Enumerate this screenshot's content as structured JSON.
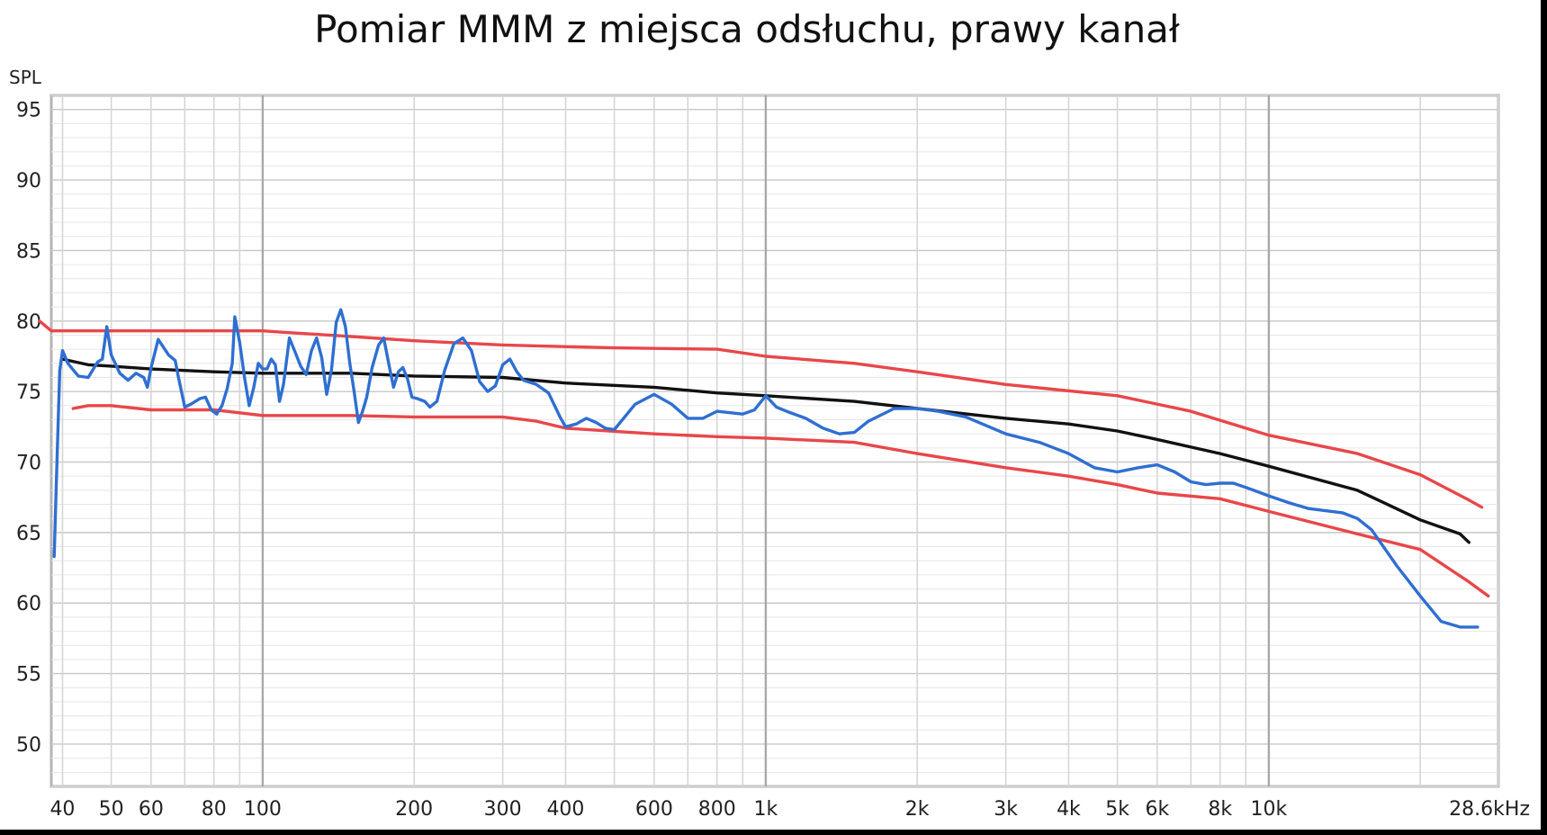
{
  "chart_data": {
    "type": "line",
    "title": "Pomiar MMM z miejsca odsłuchu, prawy kanał",
    "ylabel": "SPL",
    "xlabel": "",
    "x_scale": "log",
    "xlim": [
      38,
      28600
    ],
    "ylim": [
      47,
      96
    ],
    "grid": true,
    "legend": "none",
    "y_ticks": [
      50,
      55,
      60,
      65,
      70,
      75,
      80,
      85,
      90,
      95
    ],
    "x_ticks": [
      {
        "value": 40,
        "label": "40"
      },
      {
        "value": 50,
        "label": "50"
      },
      {
        "value": 60,
        "label": "60"
      },
      {
        "value": 80,
        "label": "80"
      },
      {
        "value": 100,
        "label": "100"
      },
      {
        "value": 200,
        "label": "200"
      },
      {
        "value": 300,
        "label": "300"
      },
      {
        "value": 400,
        "label": "400"
      },
      {
        "value": 600,
        "label": "600"
      },
      {
        "value": 800,
        "label": "800"
      },
      {
        "value": 1000,
        "label": "1k"
      },
      {
        "value": 2000,
        "label": "2k"
      },
      {
        "value": 3000,
        "label": "3k"
      },
      {
        "value": 4000,
        "label": "4k"
      },
      {
        "value": 5000,
        "label": "5k"
      },
      {
        "value": 6000,
        "label": "6k"
      },
      {
        "value": 8000,
        "label": "8k"
      },
      {
        "value": 10000,
        "label": "10k"
      },
      {
        "value": 28600,
        "label": "28.6kHz"
      }
    ],
    "series": [
      {
        "color": "#e8474a",
        "points": [
          [
            36,
            80
          ],
          [
            38,
            79.3
          ],
          [
            60,
            79.3
          ],
          [
            100,
            79.3
          ],
          [
            110,
            79.2
          ],
          [
            150,
            78.9
          ],
          [
            200,
            78.6
          ],
          [
            300,
            78.3
          ],
          [
            500,
            78.1
          ],
          [
            800,
            78
          ],
          [
            1000,
            77.5
          ],
          [
            1500,
            77
          ],
          [
            2000,
            76.4
          ],
          [
            3000,
            75.5
          ],
          [
            5000,
            74.7
          ],
          [
            7000,
            73.6
          ],
          [
            10000,
            71.9
          ],
          [
            15000,
            70.6
          ],
          [
            20000,
            69.1
          ],
          [
            25000,
            67.3
          ],
          [
            26500,
            66.8
          ]
        ]
      },
      {
        "color": "#e8474a",
        "points": [
          [
            42,
            73.8
          ],
          [
            45,
            74
          ],
          [
            50,
            74
          ],
          [
            60,
            73.7
          ],
          [
            80,
            73.7
          ],
          [
            100,
            73.3
          ],
          [
            150,
            73.3
          ],
          [
            200,
            73.2
          ],
          [
            300,
            73.2
          ],
          [
            350,
            72.9
          ],
          [
            400,
            72.4
          ],
          [
            600,
            72
          ],
          [
            800,
            71.8
          ],
          [
            1000,
            71.7
          ],
          [
            1500,
            71.4
          ],
          [
            2000,
            70.6
          ],
          [
            3000,
            69.6
          ],
          [
            4000,
            69
          ],
          [
            5000,
            68.4
          ],
          [
            6000,
            67.8
          ],
          [
            8000,
            67.4
          ],
          [
            10000,
            66.5
          ],
          [
            15000,
            64.9
          ],
          [
            20000,
            63.8
          ],
          [
            25000,
            61.5
          ],
          [
            27300,
            60.5
          ]
        ]
      },
      {
        "color": "#111111",
        "points": [
          [
            40,
            77.3
          ],
          [
            45,
            76.9
          ],
          [
            50,
            76.8
          ],
          [
            60,
            76.6
          ],
          [
            80,
            76.4
          ],
          [
            100,
            76.3
          ],
          [
            150,
            76.3
          ],
          [
            200,
            76.1
          ],
          [
            300,
            76
          ],
          [
            400,
            75.6
          ],
          [
            600,
            75.3
          ],
          [
            800,
            74.9
          ],
          [
            1000,
            74.7
          ],
          [
            1500,
            74.3
          ],
          [
            2000,
            73.8
          ],
          [
            3000,
            73.1
          ],
          [
            4000,
            72.7
          ],
          [
            5000,
            72.2
          ],
          [
            6000,
            71.6
          ],
          [
            8000,
            70.6
          ],
          [
            10000,
            69.7
          ],
          [
            15000,
            68
          ],
          [
            20000,
            65.9
          ],
          [
            24000,
            64.9
          ],
          [
            25000,
            64.3
          ]
        ]
      },
      {
        "color": "#2f6fd1",
        "points": [
          [
            38.5,
            63.3
          ],
          [
            39,
            70
          ],
          [
            39.5,
            76.5
          ],
          [
            40,
            77.9
          ],
          [
            41,
            77
          ],
          [
            43,
            76.1
          ],
          [
            45,
            76
          ],
          [
            47,
            77.1
          ],
          [
            48,
            77.3
          ],
          [
            49,
            79.6
          ],
          [
            50,
            77.6
          ],
          [
            52,
            76.3
          ],
          [
            54,
            75.8
          ],
          [
            56,
            76.3
          ],
          [
            58,
            76
          ],
          [
            59,
            75.3
          ],
          [
            60,
            76.7
          ],
          [
            62,
            78.7
          ],
          [
            65,
            77.6
          ],
          [
            67,
            77.2
          ],
          [
            68,
            76
          ],
          [
            70,
            73.9
          ],
          [
            72,
            74.1
          ],
          [
            75,
            74.5
          ],
          [
            77,
            74.6
          ],
          [
            79,
            73.7
          ],
          [
            81,
            73.4
          ],
          [
            83,
            74
          ],
          [
            85,
            75.2
          ],
          [
            87,
            77
          ],
          [
            88,
            80.3
          ],
          [
            90,
            78.5
          ],
          [
            92,
            76
          ],
          [
            94,
            74
          ],
          [
            96,
            75.3
          ],
          [
            98,
            77
          ],
          [
            100,
            76.6
          ],
          [
            102,
            76.6
          ],
          [
            104,
            77.3
          ],
          [
            106,
            76.9
          ],
          [
            108,
            74.3
          ],
          [
            110,
            75.5
          ],
          [
            113,
            78.8
          ],
          [
            116,
            77.8
          ],
          [
            119,
            76.8
          ],
          [
            122,
            76.2
          ],
          [
            125,
            77.9
          ],
          [
            128,
            78.8
          ],
          [
            131,
            77.4
          ],
          [
            134,
            74.8
          ],
          [
            137,
            76.5
          ],
          [
            140,
            79.9
          ],
          [
            143,
            80.8
          ],
          [
            146,
            79.6
          ],
          [
            149,
            77
          ],
          [
            152,
            75
          ],
          [
            155,
            72.8
          ],
          [
            158,
            73.6
          ],
          [
            161,
            74.6
          ],
          [
            165,
            76.7
          ],
          [
            170,
            78.3
          ],
          [
            174,
            78.8
          ],
          [
            178,
            77
          ],
          [
            182,
            75.3
          ],
          [
            186,
            76.4
          ],
          [
            190,
            76.7
          ],
          [
            194,
            75.9
          ],
          [
            198,
            74.6
          ],
          [
            203,
            74.5
          ],
          [
            210,
            74.3
          ],
          [
            215,
            73.9
          ],
          [
            222,
            74.3
          ],
          [
            230,
            76.5
          ],
          [
            240,
            78.4
          ],
          [
            250,
            78.8
          ],
          [
            260,
            77.9
          ],
          [
            270,
            75.7
          ],
          [
            280,
            75
          ],
          [
            290,
            75.4
          ],
          [
            300,
            76.9
          ],
          [
            310,
            77.3
          ],
          [
            320,
            76.4
          ],
          [
            330,
            75.8
          ],
          [
            350,
            75.5
          ],
          [
            370,
            74.9
          ],
          [
            390,
            73.2
          ],
          [
            400,
            72.5
          ],
          [
            420,
            72.7
          ],
          [
            440,
            73.1
          ],
          [
            460,
            72.8
          ],
          [
            480,
            72.4
          ],
          [
            500,
            72.3
          ],
          [
            550,
            74.1
          ],
          [
            600,
            74.8
          ],
          [
            650,
            74.1
          ],
          [
            700,
            73.1
          ],
          [
            750,
            73.1
          ],
          [
            800,
            73.6
          ],
          [
            850,
            73.5
          ],
          [
            900,
            73.4
          ],
          [
            950,
            73.7
          ],
          [
            1000,
            74.7
          ],
          [
            1050,
            73.9
          ],
          [
            1100,
            73.6
          ],
          [
            1200,
            73.1
          ],
          [
            1300,
            72.4
          ],
          [
            1400,
            72
          ],
          [
            1500,
            72.1
          ],
          [
            1600,
            72.9
          ],
          [
            1800,
            73.8
          ],
          [
            2000,
            73.8
          ],
          [
            2200,
            73.6
          ],
          [
            2500,
            73.2
          ],
          [
            3000,
            72
          ],
          [
            3500,
            71.4
          ],
          [
            4000,
            70.6
          ],
          [
            4500,
            69.6
          ],
          [
            5000,
            69.3
          ],
          [
            5500,
            69.6
          ],
          [
            6000,
            69.8
          ],
          [
            6500,
            69.3
          ],
          [
            7000,
            68.6
          ],
          [
            7500,
            68.4
          ],
          [
            8000,
            68.5
          ],
          [
            8500,
            68.5
          ],
          [
            9000,
            68.2
          ],
          [
            10000,
            67.6
          ],
          [
            11000,
            67.1
          ],
          [
            12000,
            66.7
          ],
          [
            14000,
            66.4
          ],
          [
            15000,
            66
          ],
          [
            16000,
            65.2
          ],
          [
            18000,
            62.6
          ],
          [
            20000,
            60.5
          ],
          [
            22000,
            58.7
          ],
          [
            24000,
            58.3
          ],
          [
            26000,
            58.3
          ]
        ]
      }
    ]
  }
}
